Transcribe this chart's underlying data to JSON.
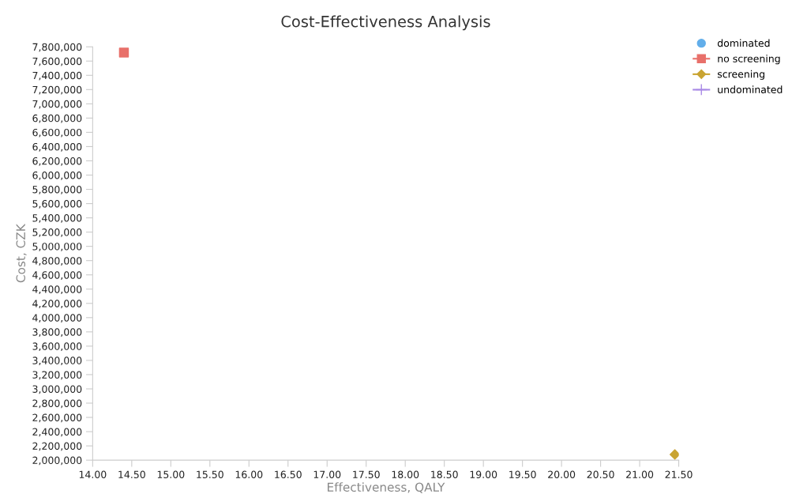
{
  "chart_data": {
    "type": "scatter",
    "title": "Cost-Effectiveness Analysis",
    "xlabel": "Effectiveness, QALY",
    "ylabel": "Cost, CZK",
    "series": [
      {
        "name": "dominated",
        "color": "#62aeea",
        "marker": "circle"
      },
      {
        "name": "no screening",
        "color": "#e8706a",
        "marker": "square",
        "x": [
          14.4
        ],
        "values": [
          7720000
        ]
      },
      {
        "name": "screening",
        "color": "#c9a432",
        "marker": "diamond",
        "x": [
          21.45
        ],
        "values": [
          2080000
        ]
      },
      {
        "name": "undominated",
        "color": "#a98ae6",
        "marker": "cross"
      }
    ],
    "xlim": [
      14,
      21.5
    ],
    "xticks": [
      {
        "value": 14,
        "label": "14.00"
      },
      {
        "value": 14.5,
        "label": "14.50"
      },
      {
        "value": 15,
        "label": "15.00"
      },
      {
        "value": 15.5,
        "label": "15.50"
      },
      {
        "value": 16,
        "label": "16.00"
      },
      {
        "value": 16.5,
        "label": "16.50"
      },
      {
        "value": 17,
        "label": "17.00"
      },
      {
        "value": 17.5,
        "label": "17.50"
      },
      {
        "value": 18,
        "label": "18.00"
      },
      {
        "value": 18.5,
        "label": "18.50"
      },
      {
        "value": 19,
        "label": "19.00"
      },
      {
        "value": 19.5,
        "label": "19.50"
      },
      {
        "value": 20,
        "label": "20.00"
      },
      {
        "value": 20.5,
        "label": "20.50"
      },
      {
        "value": 21,
        "label": "21.00"
      },
      {
        "value": 21.5,
        "label": "21.50"
      }
    ],
    "ylim": [
      2000000,
      7800000
    ],
    "yticks": [
      {
        "value": 2000000,
        "label": "2,000,000"
      },
      {
        "value": 2200000,
        "label": "2,200,000"
      },
      {
        "value": 2400000,
        "label": "2,400,000"
      },
      {
        "value": 2600000,
        "label": "2,600,000"
      },
      {
        "value": 2800000,
        "label": "2,800,000"
      },
      {
        "value": 3000000,
        "label": "3,000,000"
      },
      {
        "value": 3200000,
        "label": "3,200,000"
      },
      {
        "value": 3400000,
        "label": "3,400,000"
      },
      {
        "value": 3600000,
        "label": "3,600,000"
      },
      {
        "value": 3800000,
        "label": "3,800,000"
      },
      {
        "value": 4000000,
        "label": "4,000,000"
      },
      {
        "value": 4200000,
        "label": "4,200,000"
      },
      {
        "value": 4400000,
        "label": "4,400,000"
      },
      {
        "value": 4600000,
        "label": "4,600,000"
      },
      {
        "value": 4800000,
        "label": "4,800,000"
      },
      {
        "value": 5000000,
        "label": "5,000,000"
      },
      {
        "value": 5200000,
        "label": "5,200,000"
      },
      {
        "value": 5400000,
        "label": "5,400,000"
      },
      {
        "value": 5600000,
        "label": "5,600,000"
      },
      {
        "value": 5800000,
        "label": "5,800,000"
      },
      {
        "value": 6000000,
        "label": "6,000,000"
      },
      {
        "value": 6200000,
        "label": "6,200,000"
      },
      {
        "value": 6400000,
        "label": "6,400,000"
      },
      {
        "value": 6600000,
        "label": "6,600,000"
      },
      {
        "value": 6800000,
        "label": "6,800,000"
      },
      {
        "value": 7000000,
        "label": "7,000,000"
      },
      {
        "value": 7200000,
        "label": "7,200,000"
      },
      {
        "value": 7400000,
        "label": "7,400,000"
      },
      {
        "value": 7600000,
        "label": "7,600,000"
      },
      {
        "value": 7800000,
        "label": "7,800,000"
      }
    ],
    "grid": false,
    "legend": "top right"
  }
}
